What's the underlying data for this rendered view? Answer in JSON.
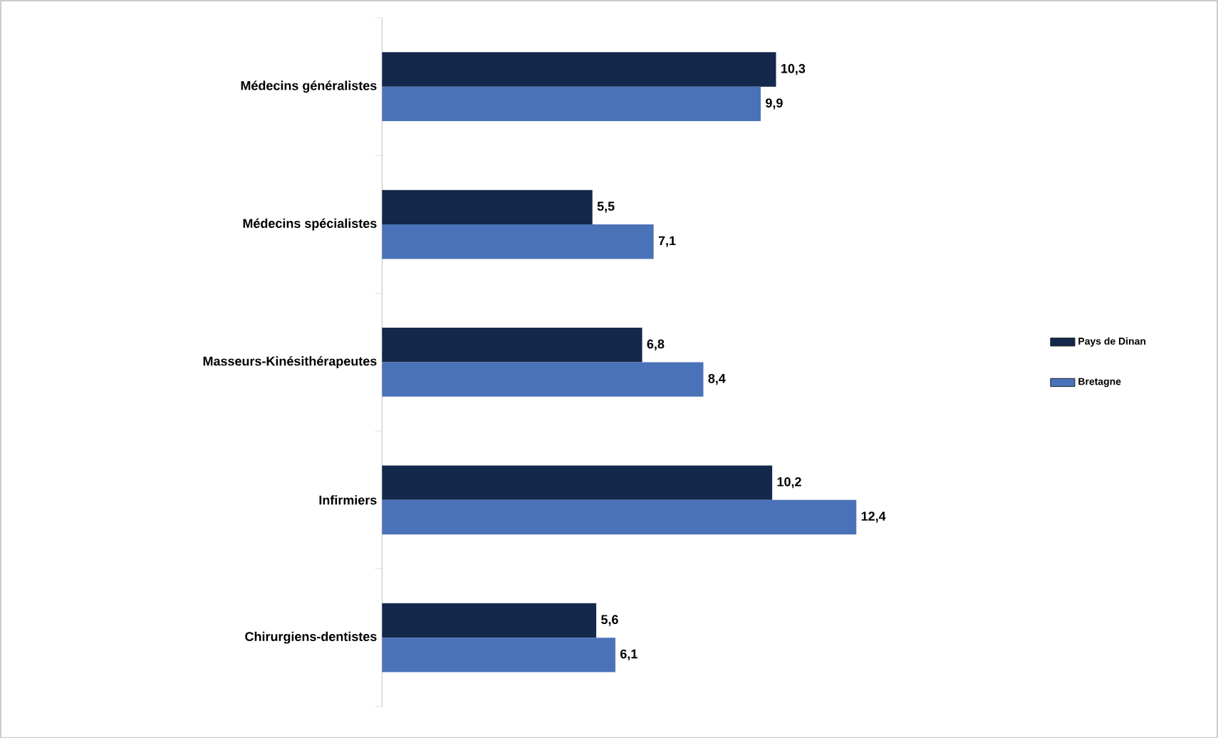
{
  "chart_data": {
    "type": "bar",
    "orientation": "horizontal",
    "categories": [
      "Médecins généralistes",
      "Médecins spécialistes",
      "Masseurs-Kinésithérapeutes",
      "Infirmiers",
      "Chirurgiens-dentistes"
    ],
    "series": [
      {
        "name": "Pays de Dinan",
        "color": "#14284b",
        "values": [
          10.3,
          5.5,
          6.8,
          10.2,
          5.6
        ],
        "value_labels": [
          "10,3",
          "5,5",
          "6,8",
          "10,2",
          "5,6"
        ]
      },
      {
        "name": "Bretagne",
        "color": "#4a72b8",
        "values": [
          9.9,
          7.1,
          8.4,
          12.4,
          6.1
        ],
        "value_labels": [
          "9,9",
          "7,1",
          "8,4",
          "12,4",
          "6,1"
        ]
      }
    ],
    "legend": "right"
  }
}
